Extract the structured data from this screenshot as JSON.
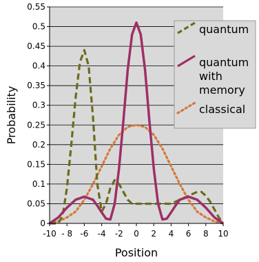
{
  "chart_data": {
    "type": "line",
    "xlabel": "Position",
    "ylabel": "Probability",
    "xlim": [
      -10,
      10
    ],
    "ylim": [
      0,
      0.55
    ],
    "x_ticks": [
      -10,
      -8,
      -6,
      -4,
      -2,
      0,
      2,
      4,
      6,
      8,
      10
    ],
    "x_tick_labels": [
      "-10",
      "- 8",
      "-6",
      "-4",
      "-2",
      "0",
      "2",
      "4",
      "6",
      "8",
      "10"
    ],
    "y_ticks": [
      0,
      0.05,
      0.1,
      0.15,
      0.2,
      0.25,
      0.3,
      0.35,
      0.4,
      0.45,
      0.5,
      0.55
    ],
    "y_tick_labels": [
      "0",
      "0.05",
      "0.1",
      "0.15",
      "0.2",
      "0.25",
      "0.3",
      "0.35",
      "0.4",
      "0.45",
      "0.5",
      "0.55"
    ],
    "grid": "horizontal",
    "plot_background": "#d9d9d9",
    "legend_position": "right",
    "series": [
      {
        "name": "quantum",
        "color": "#6b6b1e",
        "dash": "dashed",
        "x": [
          -10,
          -9,
          -8.5,
          -8,
          -7.5,
          -7,
          -6.5,
          -6,
          -5.5,
          -5,
          -4.5,
          -4,
          -3.5,
          -3,
          -2.5,
          -2,
          -1.5,
          -1,
          -0.5,
          0,
          0.5,
          1,
          1.5,
          2,
          2.5,
          3,
          3.5,
          4,
          4.5,
          5,
          5.5,
          6,
          6.5,
          7,
          7.5,
          8,
          8.5,
          9,
          9.5,
          10
        ],
        "values": [
          0,
          0,
          0.02,
          0.09,
          0.2,
          0.32,
          0.41,
          0.44,
          0.4,
          0.27,
          0.1,
          0.03,
          0.05,
          0.09,
          0.11,
          0.1,
          0.08,
          0.06,
          0.05,
          0.05,
          0.05,
          0.05,
          0.05,
          0.05,
          0.05,
          0.05,
          0.05,
          0.05,
          0.055,
          0.06,
          0.065,
          0.07,
          0.075,
          0.08,
          0.08,
          0.07,
          0.055,
          0.035,
          0.015,
          0
        ]
      },
      {
        "name": "quantum with memory",
        "color": "#9e2f66",
        "dash": "solid",
        "x": [
          -10,
          -9,
          -8,
          -7,
          -6,
          -5,
          -4.5,
          -4,
          -3.5,
          -3,
          -2.5,
          -2,
          -1.5,
          -1,
          -0.5,
          0,
          0.5,
          1,
          1.5,
          2,
          2.5,
          3,
          3.5,
          4,
          4.5,
          5,
          6,
          7,
          8,
          9,
          10
        ],
        "values": [
          0,
          0.015,
          0.04,
          0.06,
          0.068,
          0.06,
          0.045,
          0.028,
          0.012,
          0.01,
          0.05,
          0.14,
          0.26,
          0.39,
          0.48,
          0.51,
          0.48,
          0.39,
          0.26,
          0.14,
          0.05,
          0.01,
          0.012,
          0.028,
          0.045,
          0.06,
          0.068,
          0.06,
          0.04,
          0.015,
          0
        ]
      },
      {
        "name": "classical",
        "color": "#d6783f",
        "dash": "dotted",
        "x": [
          -10,
          -9,
          -8,
          -7,
          -6,
          -5,
          -4,
          -3,
          -2,
          -1,
          0,
          1,
          2,
          3,
          4,
          5,
          6,
          7,
          8,
          9,
          10
        ],
        "values": [
          0,
          0.005,
          0.015,
          0.03,
          0.06,
          0.1,
          0.145,
          0.19,
          0.225,
          0.245,
          0.25,
          0.245,
          0.225,
          0.19,
          0.145,
          0.1,
          0.06,
          0.03,
          0.015,
          0.005,
          0
        ]
      }
    ],
    "legend": [
      {
        "label_lines": [
          "quantum"
        ]
      },
      {
        "label_lines": [
          "quantum",
          "with",
          "memory"
        ]
      },
      {
        "label_lines": [
          "classical"
        ]
      }
    ]
  }
}
